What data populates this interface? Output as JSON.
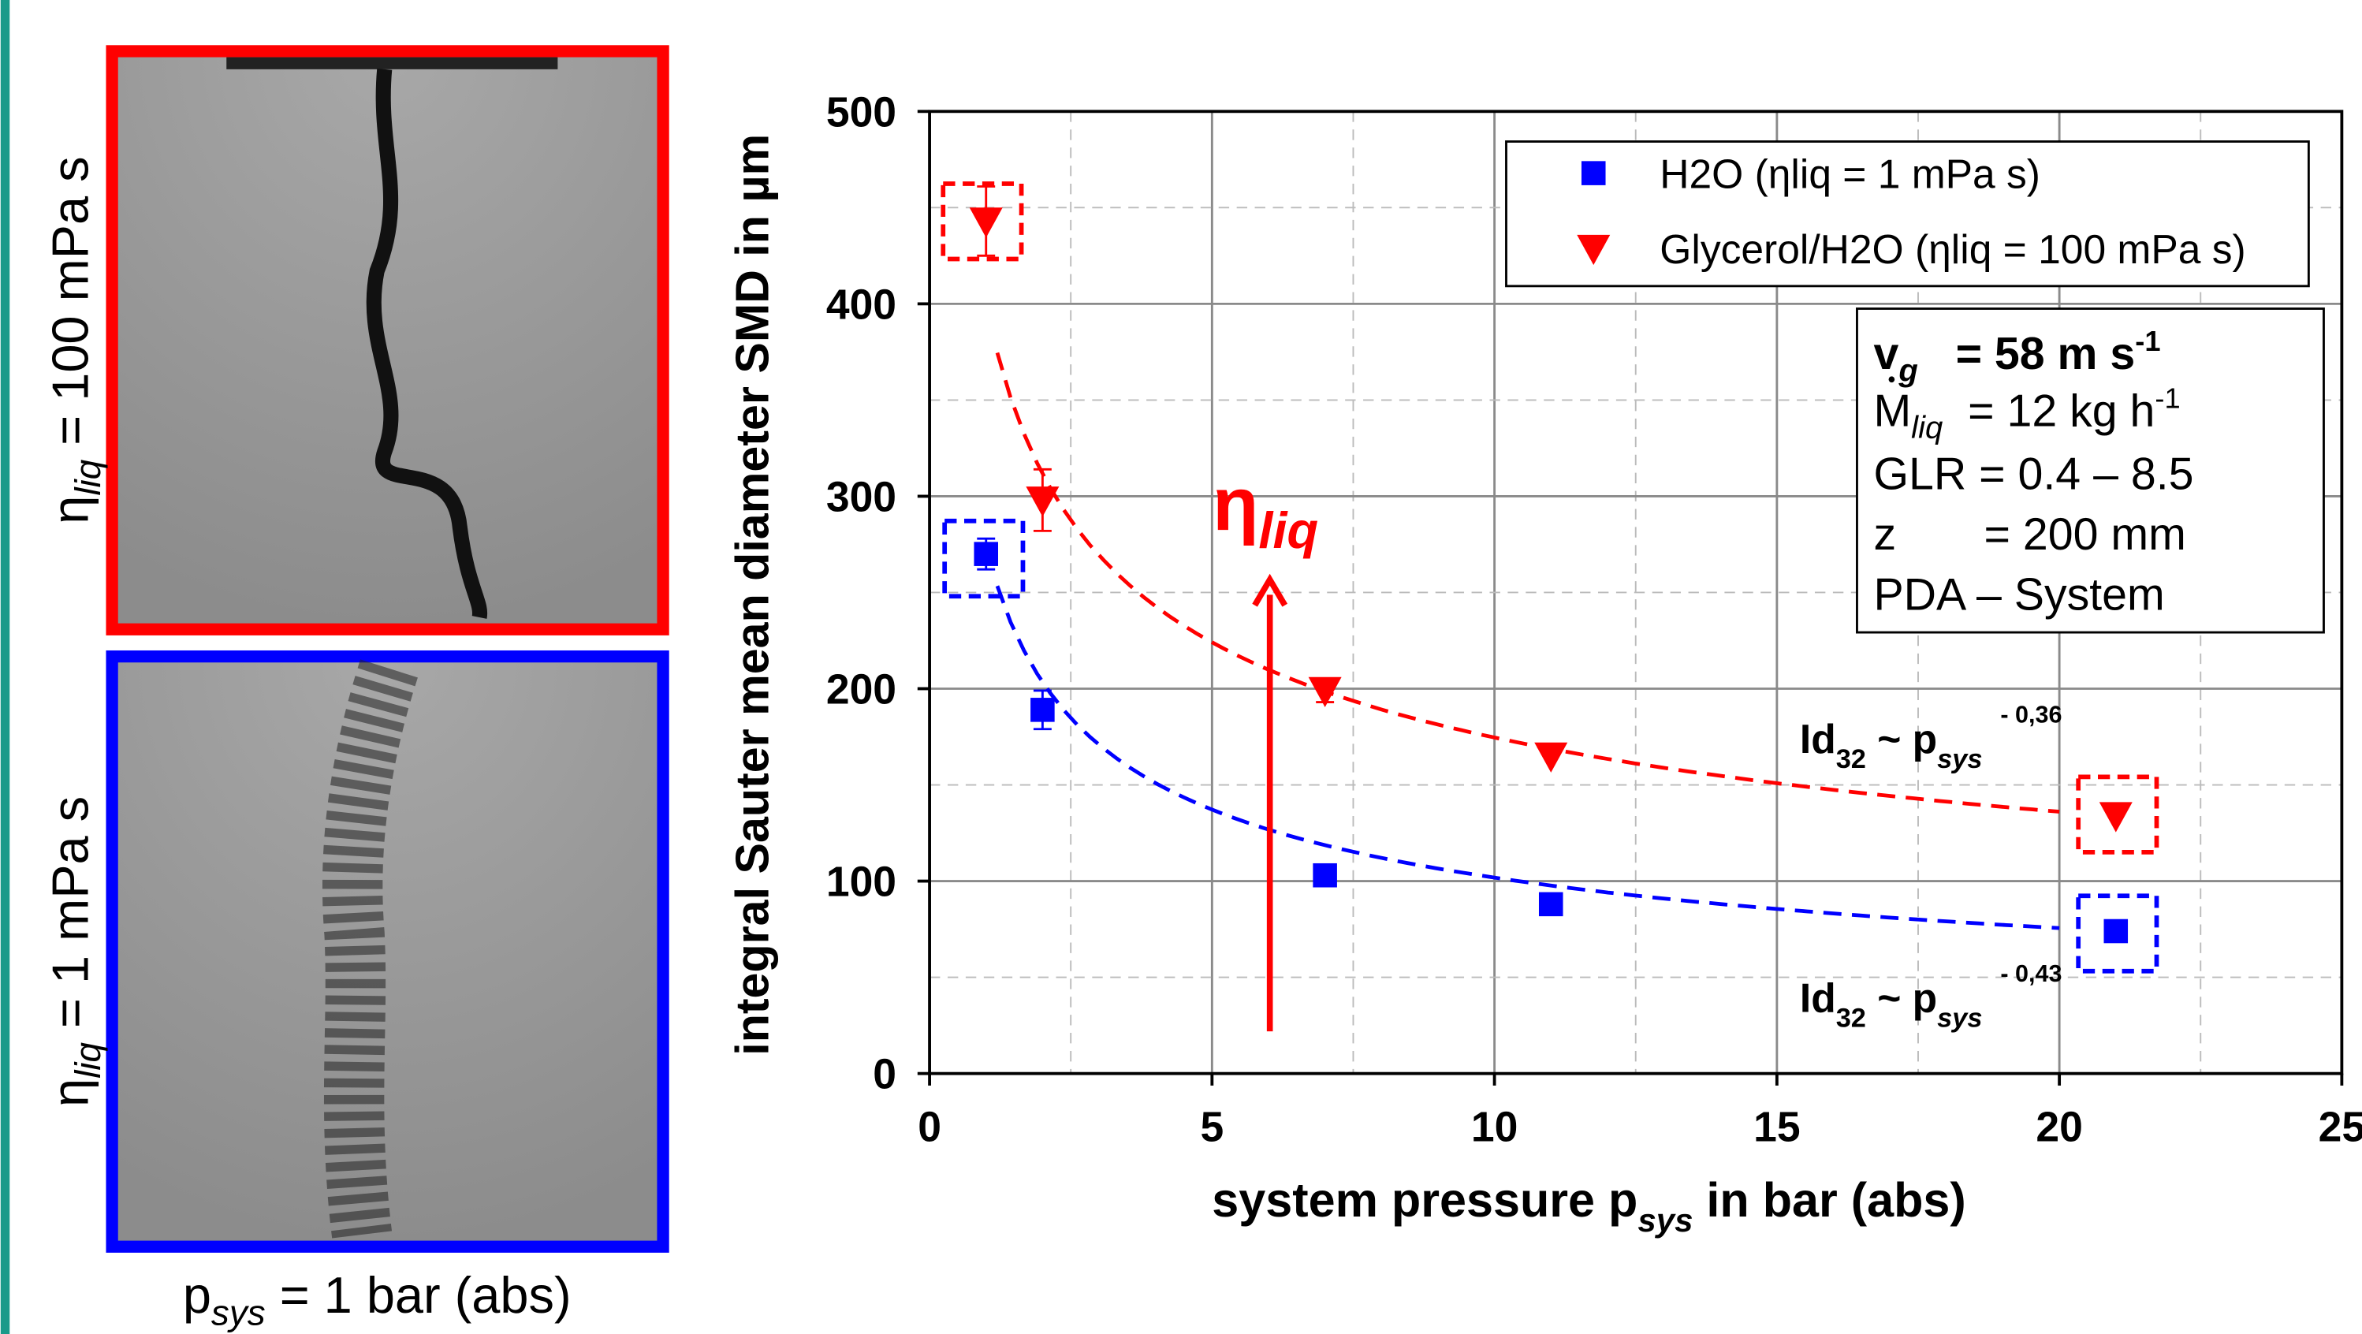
{
  "chart_data": {
    "type": "scatter",
    "x_label": [
      "system pressure p",
      "sys",
      " in bar (abs)"
    ],
    "y_label": "integral Sauter mean diameter SMD in µm",
    "xlim": [
      0,
      25
    ],
    "xticks": [
      0,
      5,
      10,
      15,
      20,
      25
    ],
    "ylim": [
      0,
      500
    ],
    "yticks": [
      0,
      100,
      200,
      300,
      400,
      500
    ],
    "grid": true,
    "legend": "top-right",
    "series": [
      {
        "name": "H2O (ηliq = 1 mPa s)",
        "color": "#0000ff",
        "marker": "square",
        "x": [
          1,
          2,
          7,
          11,
          21
        ],
        "values": [
          270,
          189,
          103,
          88,
          74
        ],
        "errors": [
          8,
          10,
          0,
          0,
          0
        ]
      },
      {
        "name": "Glycerol/H2O (ηliq = 100 mPa s)",
        "color": "#ff0000",
        "marker": "triangle-down",
        "x": [
          1,
          2,
          7,
          11,
          21
        ],
        "values": [
          443,
          298,
          199,
          165,
          134
        ],
        "errors": [
          18,
          16,
          6,
          0,
          0
        ]
      }
    ],
    "fits": [
      {
        "color": "#0000ff",
        "coefficient": 274,
        "exponent": -0.43,
        "x_range": [
          1.2,
          20
        ],
        "label": [
          "Id",
          "32",
          " ~ p",
          "sys",
          "- 0,43"
        ]
      },
      {
        "color": "#ff0000",
        "coefficient": 400,
        "exponent": -0.36,
        "x_range": [
          1.2,
          20
        ],
        "label": [
          "Id",
          "32",
          " ~ p",
          "sys",
          "- 0,36"
        ]
      }
    ],
    "conditions": [
      [
        "v",
        "g",
        "   = 58 m s",
        "-1"
      ],
      [
        "M",
        "liq",
        "  = 12 kg h",
        "-1"
      ],
      [
        "GLR = 0.4 – 8.5"
      ],
      [
        "z       = 200 mm"
      ],
      [
        "PDA – System"
      ]
    ],
    "arrow_label": [
      "η",
      "liq"
    ],
    "photo_labels": [
      [
        "η",
        "liq",
        " = 100 mPa s"
      ],
      [
        "η",
        "liq",
        " = 1 mPa s"
      ]
    ],
    "photo_caption": [
      "p",
      "sys",
      " = 1 bar (abs)"
    ]
  }
}
